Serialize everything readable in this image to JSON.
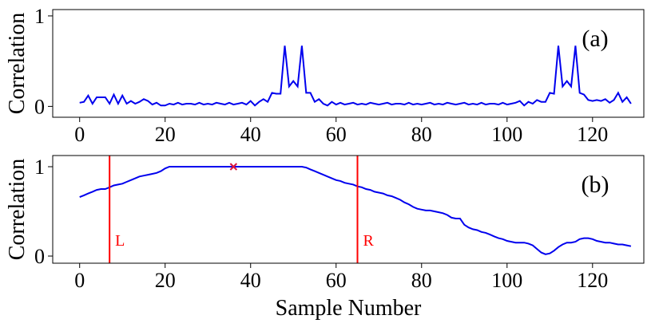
{
  "chart_data": [
    {
      "type": "line",
      "annotation": "(a)",
      "ylabel": "Correlation",
      "x": [
        0,
        1,
        2,
        3,
        4,
        5,
        6,
        7,
        8,
        9,
        10,
        11,
        12,
        13,
        14,
        15,
        16,
        17,
        18,
        19,
        20,
        21,
        22,
        23,
        24,
        25,
        26,
        27,
        28,
        29,
        30,
        31,
        32,
        33,
        34,
        35,
        36,
        37,
        38,
        39,
        40,
        41,
        42,
        43,
        44,
        45,
        46,
        47,
        48,
        49,
        50,
        51,
        52,
        53,
        54,
        55,
        56,
        57,
        58,
        59,
        60,
        61,
        62,
        63,
        64,
        65,
        66,
        67,
        68,
        69,
        70,
        71,
        72,
        73,
        74,
        75,
        76,
        77,
        78,
        79,
        80,
        81,
        82,
        83,
        84,
        85,
        86,
        87,
        88,
        89,
        90,
        91,
        92,
        93,
        94,
        95,
        96,
        97,
        98,
        99,
        100,
        101,
        102,
        103,
        104,
        105,
        106,
        107,
        108,
        109,
        110,
        111,
        112,
        113,
        114,
        115,
        116,
        117,
        118,
        119,
        120,
        121,
        122,
        123,
        124,
        125,
        126,
        127,
        128,
        129
      ],
      "series": [
        {
          "color": "#0000ee",
          "values": [
            0.04,
            0.05,
            0.12,
            0.03,
            0.1,
            0.1,
            0.1,
            0.03,
            0.13,
            0.03,
            0.12,
            0.03,
            0.06,
            0.03,
            0.05,
            0.08,
            0.06,
            0.02,
            0.04,
            0.01,
            0.01,
            0.03,
            0.02,
            0.04,
            0.02,
            0.03,
            0.03,
            0.02,
            0.04,
            0.02,
            0.03,
            0.02,
            0.04,
            0.03,
            0.02,
            0.04,
            0.02,
            0.03,
            0.04,
            0.02,
            0.06,
            0.01,
            0.05,
            0.08,
            0.05,
            0.15,
            0.14,
            0.14,
            0.67,
            0.22,
            0.28,
            0.22,
            0.67,
            0.15,
            0.15,
            0.05,
            0.08,
            0.03,
            0.01,
            0.05,
            0.02,
            0.04,
            0.02,
            0.03,
            0.04,
            0.02,
            0.03,
            0.02,
            0.04,
            0.03,
            0.02,
            0.03,
            0.04,
            0.02,
            0.03,
            0.03,
            0.02,
            0.04,
            0.02,
            0.03,
            0.02,
            0.03,
            0.04,
            0.02,
            0.03,
            0.02,
            0.04,
            0.03,
            0.02,
            0.03,
            0.04,
            0.02,
            0.03,
            0.02,
            0.04,
            0.02,
            0.03,
            0.03,
            0.02,
            0.04,
            0.02,
            0.03,
            0.04,
            0.06,
            0.01,
            0.05,
            0.03,
            0.07,
            0.05,
            0.05,
            0.15,
            0.14,
            0.67,
            0.22,
            0.28,
            0.22,
            0.67,
            0.15,
            0.13,
            0.07,
            0.06,
            0.07,
            0.06,
            0.08,
            0.04,
            0.07,
            0.15,
            0.05,
            0.1,
            0.03
          ]
        }
      ],
      "xlim": [
        -6.3,
        132
      ],
      "xticks": [
        0,
        20,
        40,
        60,
        80,
        100,
        120
      ],
      "ylim": [
        -0.12,
        1.07
      ],
      "yticks": [
        0,
        1
      ]
    },
    {
      "type": "line",
      "annotation": "(b)",
      "ylabel": "Correlation",
      "xlabel": "Sample Number",
      "x": [
        0,
        1,
        2,
        3,
        4,
        5,
        6,
        7,
        8,
        9,
        10,
        11,
        12,
        13,
        14,
        15,
        16,
        17,
        18,
        19,
        20,
        21,
        22,
        23,
        24,
        25,
        26,
        27,
        28,
        29,
        30,
        31,
        32,
        33,
        34,
        35,
        36,
        37,
        38,
        39,
        40,
        41,
        42,
        43,
        44,
        45,
        46,
        47,
        48,
        49,
        50,
        51,
        52,
        53,
        54,
        55,
        56,
        57,
        58,
        59,
        60,
        61,
        62,
        63,
        64,
        65,
        66,
        67,
        68,
        69,
        70,
        71,
        72,
        73,
        74,
        75,
        76,
        77,
        78,
        79,
        80,
        81,
        82,
        83,
        84,
        85,
        86,
        87,
        88,
        89,
        90,
        91,
        92,
        93,
        94,
        95,
        96,
        97,
        98,
        99,
        100,
        101,
        102,
        103,
        104,
        105,
        106,
        107,
        108,
        109,
        110,
        111,
        112,
        113,
        114,
        115,
        116,
        117,
        118,
        119,
        120,
        121,
        122,
        123,
        124,
        125,
        126,
        127,
        128,
        129
      ],
      "series": [
        {
          "color": "#0000ee",
          "values": [
            0.66,
            0.68,
            0.7,
            0.72,
            0.74,
            0.75,
            0.75,
            0.77,
            0.79,
            0.8,
            0.81,
            0.83,
            0.85,
            0.87,
            0.89,
            0.9,
            0.91,
            0.92,
            0.93,
            0.95,
            0.98,
            1,
            1,
            1,
            1,
            1,
            1,
            1,
            1,
            1,
            1,
            1,
            1,
            1,
            1,
            1,
            1,
            1,
            1,
            1,
            1,
            1,
            1,
            1,
            1,
            1,
            1,
            1,
            1,
            1,
            1,
            1,
            1,
            0.99,
            0.97,
            0.95,
            0.93,
            0.91,
            0.89,
            0.87,
            0.85,
            0.84,
            0.82,
            0.81,
            0.8,
            0.78,
            0.77,
            0.75,
            0.74,
            0.72,
            0.71,
            0.7,
            0.68,
            0.67,
            0.65,
            0.63,
            0.6,
            0.58,
            0.55,
            0.53,
            0.52,
            0.51,
            0.51,
            0.5,
            0.49,
            0.48,
            0.46,
            0.43,
            0.42,
            0.42,
            0.35,
            0.32,
            0.3,
            0.29,
            0.27,
            0.26,
            0.24,
            0.22,
            0.2,
            0.19,
            0.17,
            0.16,
            0.15,
            0.15,
            0.15,
            0.14,
            0.12,
            0.08,
            0.04,
            0.02,
            0.03,
            0.06,
            0.1,
            0.13,
            0.15,
            0.15,
            0.16,
            0.19,
            0.2,
            0.2,
            0.19,
            0.17,
            0.16,
            0.15,
            0.15,
            0.14,
            0.13,
            0.13,
            0.12,
            0.11
          ]
        }
      ],
      "vlines": [
        {
          "x": 7,
          "label": "L",
          "color": "#ff0000"
        },
        {
          "x": 65,
          "label": "R",
          "color": "#ff0000"
        }
      ],
      "marker": {
        "x": 36,
        "y": 1,
        "color": "#dc143c"
      },
      "xlim": [
        -6.3,
        132
      ],
      "xticks": [
        0,
        20,
        40,
        60,
        80,
        100,
        120
      ],
      "ylim": [
        -0.08,
        1.125
      ],
      "yticks": [
        0,
        1
      ]
    }
  ]
}
